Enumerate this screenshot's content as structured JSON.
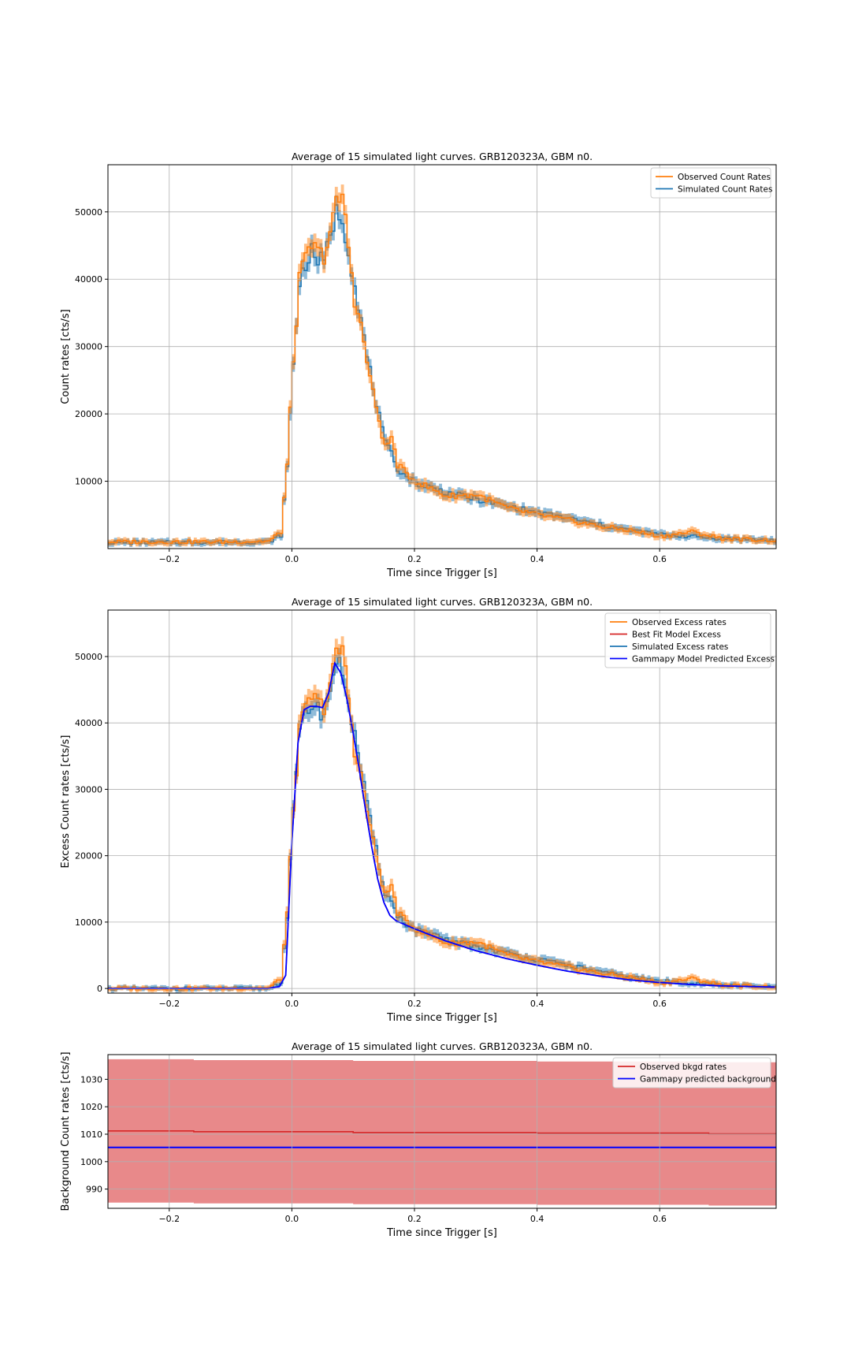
{
  "chart_data": [
    {
      "type": "line",
      "title": "Average of 15 simulated light curves. GRB120323A, GBM n0.",
      "xlabel": "Time since Trigger [s]",
      "ylabel": "Count rates [cts/s]",
      "xlim": [
        -0.3,
        0.79
      ],
      "ylim": [
        0,
        57000
      ],
      "xticks": [
        -0.2,
        0.0,
        0.2,
        0.4,
        0.6
      ],
      "xtick_labels": [
        "−0.2",
        "0.0",
        "0.2",
        "0.4",
        "0.6"
      ],
      "yticks": [
        10000,
        20000,
        30000,
        40000,
        50000
      ],
      "ytick_labels": [
        "10000",
        "20000",
        "30000",
        "40000",
        "50000"
      ],
      "grid": true,
      "legend_position": "top-right",
      "x": [
        -0.3,
        -0.1,
        -0.04,
        -0.02,
        -0.01,
        0.0,
        0.01,
        0.02,
        0.03,
        0.04,
        0.05,
        0.06,
        0.07,
        0.08,
        0.09,
        0.1,
        0.11,
        0.12,
        0.13,
        0.14,
        0.15,
        0.16,
        0.17,
        0.18,
        0.2,
        0.25,
        0.3,
        0.35,
        0.4,
        0.45,
        0.5,
        0.55,
        0.6,
        0.65,
        0.7,
        0.79
      ],
      "series": [
        {
          "name": "Observed Count Rates",
          "color": "#ff7f0e",
          "values": [
            1000,
            1000,
            1100,
            2500,
            12500,
            28000,
            40000,
            43000,
            45000,
            44000,
            43500,
            47000,
            51000,
            52500,
            45000,
            37000,
            33000,
            28000,
            23000,
            19000,
            15000,
            16500,
            12500,
            11500,
            10000,
            7800,
            8000,
            6000,
            5000,
            4200,
            3300,
            2700,
            1800,
            2500,
            1500,
            1200
          ]
        },
        {
          "name": "Simulated Count Rates",
          "color": "#1f77b4",
          "values": [
            900,
            950,
            1000,
            2000,
            12000,
            27500,
            39500,
            42500,
            44000,
            43000,
            42500,
            46500,
            50000,
            49000,
            44500,
            39000,
            34000,
            28500,
            24000,
            19500,
            15500,
            14000,
            12000,
            11000,
            9800,
            8300,
            7300,
            6300,
            5300,
            4500,
            3500,
            2700,
            2100,
            1800,
            1500,
            1200
          ]
        }
      ]
    },
    {
      "type": "line",
      "title": "Average of 15 simulated light curves. GRB120323A, GBM n0.",
      "xlabel": "Time since Trigger [s]",
      "ylabel": "Excess Count rates [cts/s]",
      "xlim": [
        -0.3,
        0.79
      ],
      "ylim": [
        -700,
        57000
      ],
      "xticks": [
        -0.2,
        0.0,
        0.2,
        0.4,
        0.6
      ],
      "xtick_labels": [
        "−0.2",
        "0.0",
        "0.2",
        "0.4",
        "0.6"
      ],
      "yticks": [
        0,
        10000,
        20000,
        30000,
        40000,
        50000
      ],
      "ytick_labels": [
        "0",
        "10000",
        "20000",
        "30000",
        "40000",
        "50000"
      ],
      "grid": true,
      "legend_position": "top-right",
      "x": [
        -0.3,
        -0.1,
        -0.04,
        -0.02,
        -0.01,
        0.0,
        0.01,
        0.02,
        0.03,
        0.04,
        0.05,
        0.06,
        0.07,
        0.08,
        0.09,
        0.1,
        0.11,
        0.12,
        0.13,
        0.14,
        0.15,
        0.16,
        0.17,
        0.18,
        0.2,
        0.25,
        0.3,
        0.35,
        0.4,
        0.45,
        0.5,
        0.55,
        0.6,
        0.65,
        0.7,
        0.79
      ],
      "series": [
        {
          "name": "Observed Excess rates",
          "color": "#ff7f0e",
          "values": [
            0,
            0,
            100,
            1500,
            11500,
            27000,
            39000,
            42000,
            44000,
            43000,
            42500,
            46000,
            50000,
            51500,
            44000,
            36000,
            32000,
            27000,
            22000,
            18000,
            14000,
            15500,
            11500,
            10500,
            9000,
            6800,
            7000,
            5000,
            4000,
            3200,
            2300,
            1700,
            800,
            1500,
            500,
            200
          ]
        },
        {
          "name": "Best Fit Model Excess",
          "color": "#d62728",
          "values": [
            0,
            0,
            0,
            300,
            2000,
            22000,
            37000,
            42000,
            42500,
            42500,
            42300,
            44500,
            49000,
            47500,
            43500,
            38500,
            33000,
            27000,
            21500,
            16500,
            13000,
            11000,
            10200,
            9800,
            9000,
            7200,
            5700,
            4500,
            3500,
            2600,
            1900,
            1300,
            900,
            600,
            400,
            200
          ]
        },
        {
          "name": "Simulated Excess rates",
          "color": "#1f77b4",
          "values": [
            0,
            0,
            0,
            1000,
            11000,
            26500,
            38500,
            41500,
            43000,
            42000,
            41500,
            45500,
            49000,
            48000,
            43500,
            38000,
            33000,
            27500,
            23000,
            18500,
            14500,
            13000,
            11000,
            10000,
            8800,
            7300,
            6300,
            5300,
            4300,
            3500,
            2500,
            1700,
            1100,
            800,
            500,
            200
          ]
        },
        {
          "name": "Gammapy Model Predicted Excess",
          "color": "#0000ff",
          "values": [
            0,
            0,
            0,
            300,
            2000,
            22000,
            37000,
            42000,
            42500,
            42500,
            42300,
            44500,
            49000,
            47500,
            43500,
            38500,
            33000,
            27000,
            21500,
            16500,
            13000,
            11000,
            10200,
            9800,
            9000,
            7200,
            5700,
            4500,
            3500,
            2600,
            1900,
            1300,
            900,
            600,
            400,
            200
          ]
        }
      ]
    },
    {
      "type": "line",
      "title": "Average of 15 simulated light curves. GRB120323A, GBM n0.",
      "xlabel": "Time since Trigger [s]",
      "ylabel": "Background Count rates [cts/s]",
      "xlim": [
        -0.3,
        0.79
      ],
      "ylim": [
        983,
        1039
      ],
      "xticks": [
        -0.2,
        0.0,
        0.2,
        0.4,
        0.6
      ],
      "xtick_labels": [
        "−0.2",
        "0.0",
        "0.2",
        "0.4",
        "0.6"
      ],
      "yticks": [
        990,
        1000,
        1010,
        1020,
        1030
      ],
      "ytick_labels": [
        "990",
        "1000",
        "1010",
        "1020",
        "1030"
      ],
      "grid": true,
      "legend_position": "top-right",
      "series": [
        {
          "name": "Observed bkgd rates",
          "color": "#d62728",
          "band_color": "#e8898a",
          "x": [
            -0.3,
            -0.16,
            -0.16,
            0.1,
            0.1,
            0.4,
            0.4,
            0.68,
            0.68,
            0.79
          ],
          "values": [
            1011.2,
            1011.2,
            1010.9,
            1010.9,
            1010.6,
            1010.6,
            1010.4,
            1010.4,
            1010.1,
            1010.1
          ],
          "upper": [
            1037.3,
            1037.3,
            1037.0,
            1037.0,
            1036.7,
            1036.7,
            1036.5,
            1036.5,
            1036.2,
            1036.2
          ],
          "lower": [
            985.1,
            985.1,
            984.8,
            984.8,
            984.5,
            984.5,
            984.3,
            984.3,
            984.0,
            984.0
          ]
        },
        {
          "name": "Gammapy predicted background",
          "color": "#0000ff",
          "x": [
            -0.3,
            0.79
          ],
          "values": [
            1005.2,
            1005.2
          ]
        }
      ]
    }
  ]
}
